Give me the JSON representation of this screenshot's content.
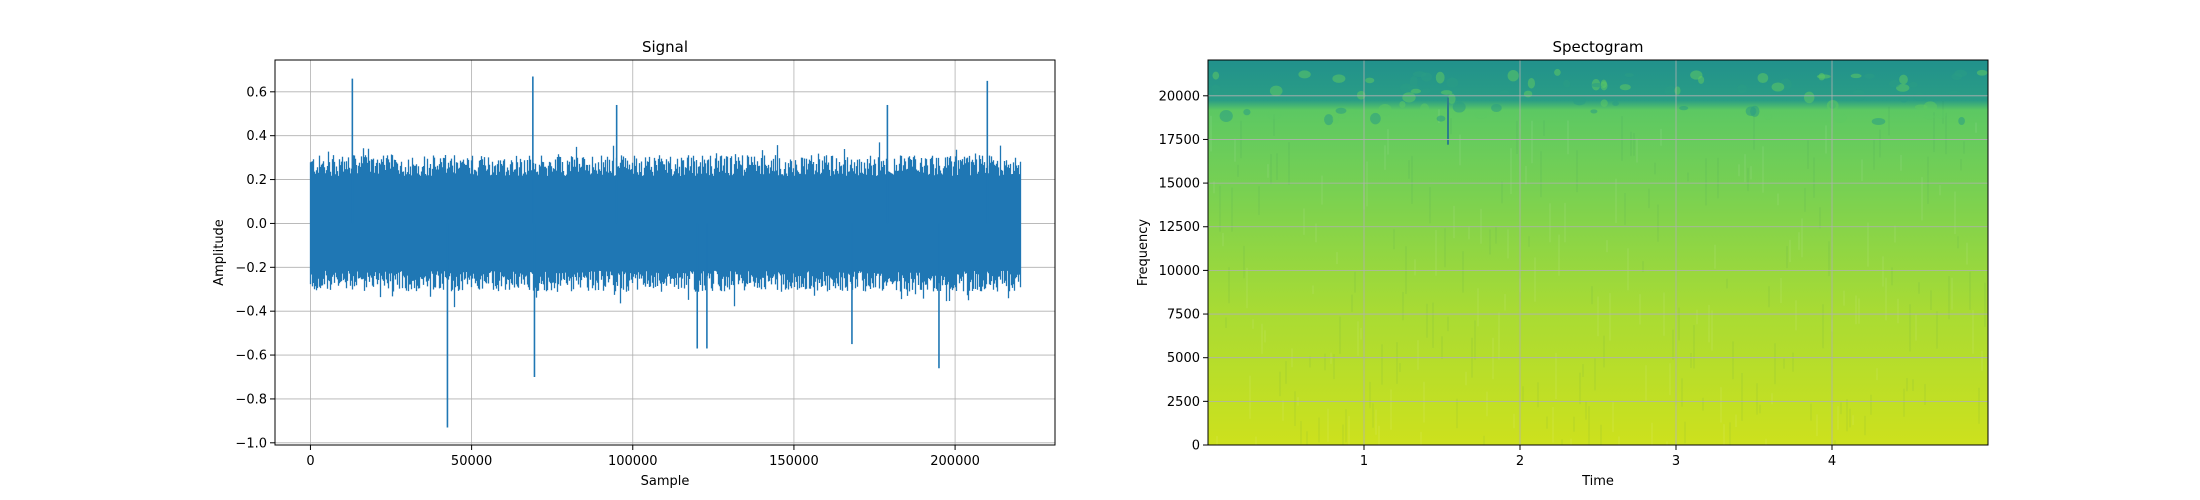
{
  "chart_data": [
    {
      "type": "line",
      "title": "Signal",
      "xlabel": "Sample",
      "ylabel": "Amplitude",
      "xlim": [
        -11000,
        231000
      ],
      "ylim": [
        -1.01,
        0.745
      ],
      "xticks": [
        "0",
        "50000",
        "100000",
        "150000",
        "200000"
      ],
      "yticks": [
        "−1.0",
        "−0.8",
        "−0.6",
        "−0.4",
        "−0.2",
        "0.0",
        "0.2",
        "0.4",
        "0.6"
      ],
      "grid": true,
      "color": "#1f77b4",
      "series": [
        {
          "x_range": [
            0,
            220500
          ],
          "typical_envelope": [
            -0.3,
            0.3
          ],
          "spikes": [
            {
              "x": 13000,
              "y": 0.66
            },
            {
              "x": 42500,
              "y": -0.93
            },
            {
              "x": 69000,
              "y": 0.67
            },
            {
              "x": 69500,
              "y": -0.7
            },
            {
              "x": 95000,
              "y": 0.54
            },
            {
              "x": 120000,
              "y": -0.57
            },
            {
              "x": 123000,
              "y": -0.57
            },
            {
              "x": 168000,
              "y": -0.55
            },
            {
              "x": 179000,
              "y": 0.54
            },
            {
              "x": 195000,
              "y": -0.66
            },
            {
              "x": 210000,
              "y": 0.65
            }
          ]
        }
      ]
    },
    {
      "type": "heatmap",
      "title": "Spectogram",
      "xlabel": "Time",
      "ylabel": "Frequency",
      "xlim": [
        0,
        5.0
      ],
      "ylim": [
        0,
        22050
      ],
      "xticks": [
        "1",
        "2",
        "3",
        "4"
      ],
      "yticks": [
        "0",
        "2500",
        "5000",
        "7500",
        "10000",
        "12500",
        "15000",
        "17500",
        "20000"
      ],
      "grid": true,
      "colormap": "viridis",
      "colors": {
        "low": "#21918c",
        "mid": "#7ad151",
        "high": "#d2e21b"
      }
    }
  ]
}
